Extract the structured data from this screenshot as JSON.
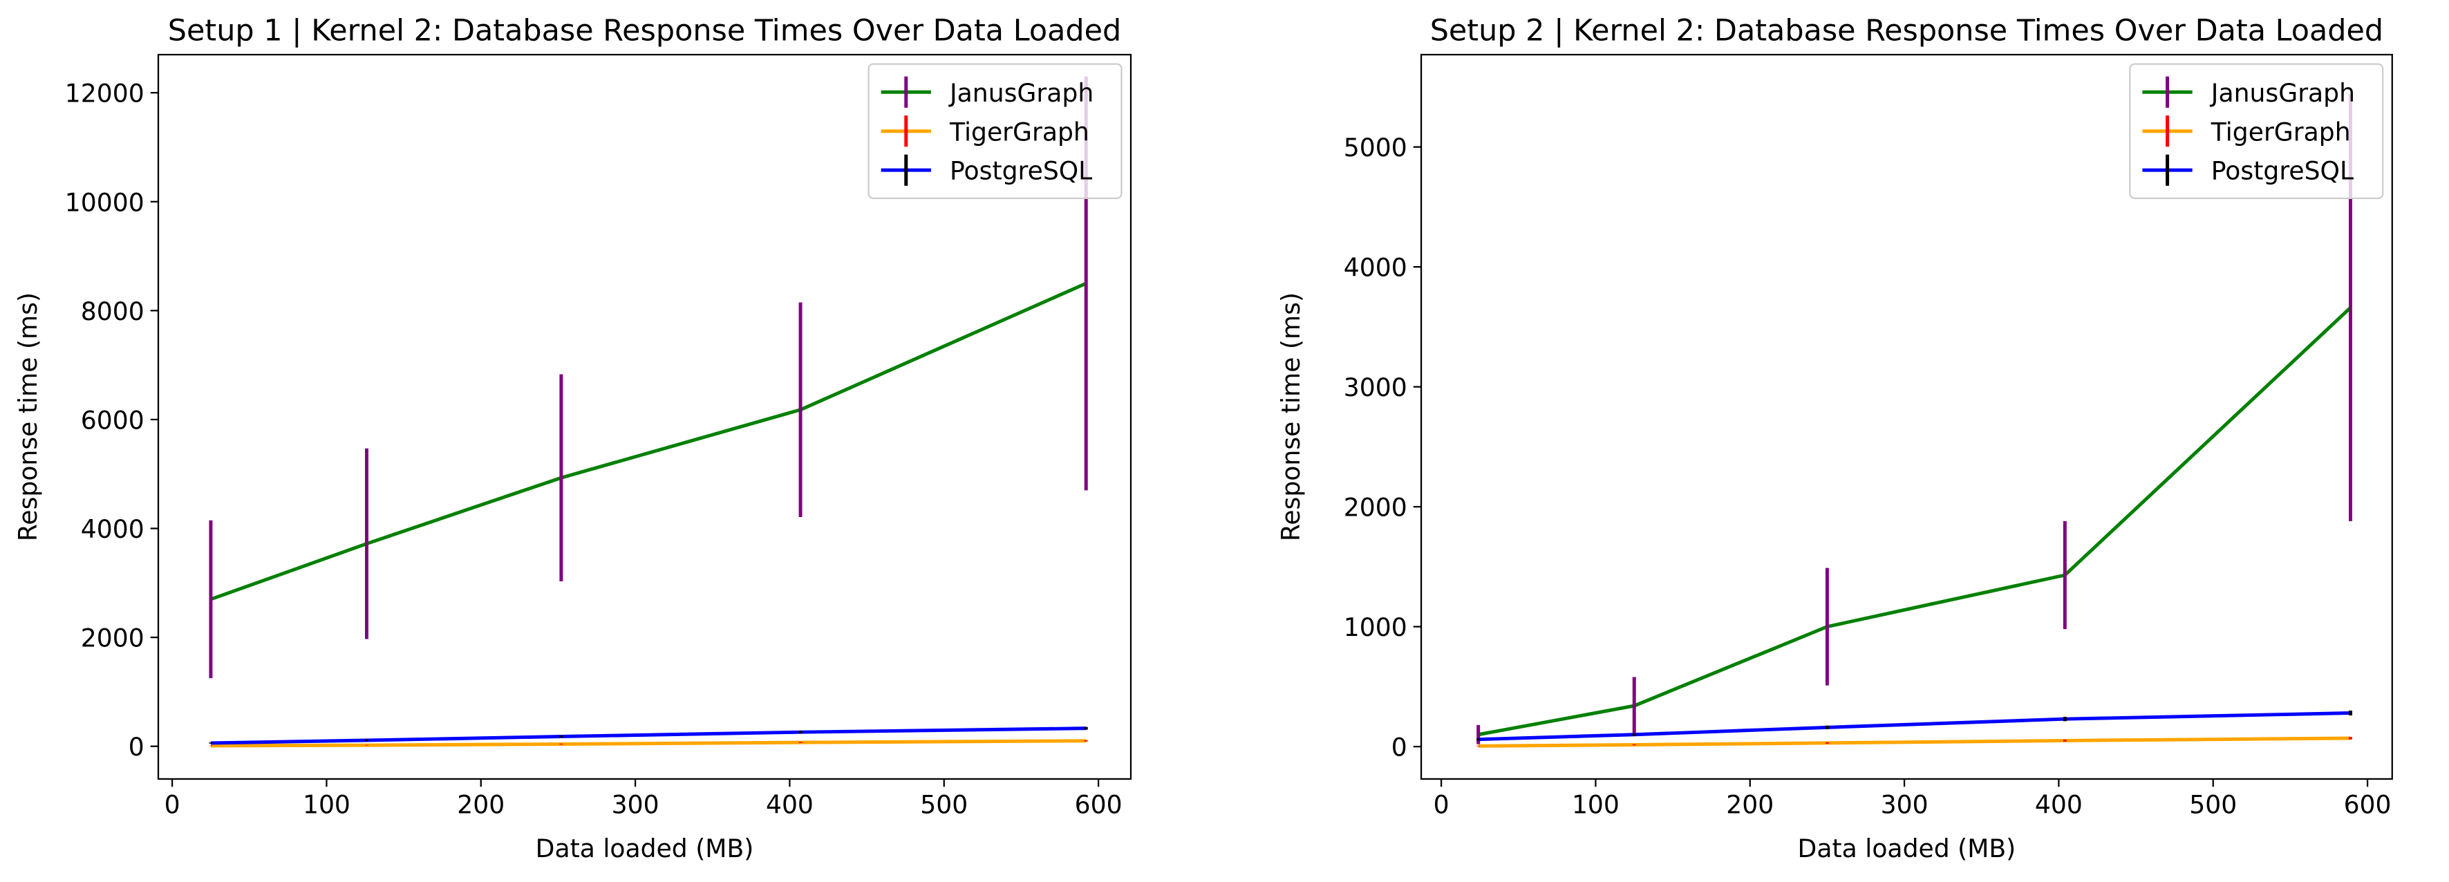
{
  "chart_data": [
    {
      "type": "line",
      "title": "Setup 1 | Kernel 2: Database Response Times Over Data Loaded",
      "x_label": "Data loaded (MB)",
      "y_label": "Response time (ms)",
      "x": [
        25,
        126,
        252,
        407,
        592
      ],
      "xlim": [
        -9,
        621
      ],
      "xticks": [
        0,
        100,
        200,
        300,
        400,
        500,
        600
      ],
      "ylim": [
        -600,
        12700
      ],
      "yticks": [
        0,
        2000,
        4000,
        6000,
        8000,
        10000,
        12000
      ],
      "legend": "upper right",
      "series": [
        {
          "name": "JanusGraph",
          "color": "#008000",
          "error_color": "#800080",
          "values": [
            2700,
            3720,
            4930,
            6180,
            8500
          ],
          "errors": [
            1450,
            1750,
            1900,
            1970,
            3800
          ]
        },
        {
          "name": "TigerGraph",
          "color": "#ffa500",
          "error_color": "#ff0000",
          "values": [
            10,
            20,
            40,
            70,
            100
          ],
          "errors": [
            3,
            5,
            8,
            10,
            12
          ]
        },
        {
          "name": "PostgreSQL",
          "color": "#0000ff",
          "error_color": "#000000",
          "values": [
            60,
            110,
            180,
            260,
            330
          ],
          "errors": [
            10,
            15,
            20,
            25,
            25
          ]
        }
      ]
    },
    {
      "type": "line",
      "title": "Setup 2 | Kernel 2: Database Response Times Over Data Loaded",
      "x_label": "Data loaded (MB)",
      "y_label": "Response time (ms)",
      "x": [
        24,
        125,
        250,
        404,
        589
      ],
      "xlim": [
        -13,
        616
      ],
      "xticks": [
        0,
        100,
        200,
        300,
        400,
        500,
        600
      ],
      "ylim": [
        -270,
        5770
      ],
      "yticks": [
        0,
        1000,
        2000,
        3000,
        4000,
        5000
      ],
      "legend": "upper right",
      "series": [
        {
          "name": "JanusGraph",
          "color": "#008000",
          "error_color": "#800080",
          "values": [
            100,
            340,
            1000,
            1430,
            3660
          ],
          "errors": [
            80,
            240,
            490,
            450,
            1780
          ]
        },
        {
          "name": "TigerGraph",
          "color": "#ffa500",
          "error_color": "#ff0000",
          "values": [
            5,
            15,
            30,
            50,
            70
          ],
          "errors": [
            2,
            4,
            6,
            8,
            10
          ]
        },
        {
          "name": "PostgreSQL",
          "color": "#0000ff",
          "error_color": "#000000",
          "values": [
            60,
            100,
            160,
            230,
            280
          ],
          "errors": [
            10,
            12,
            15,
            18,
            20
          ]
        }
      ]
    }
  ]
}
